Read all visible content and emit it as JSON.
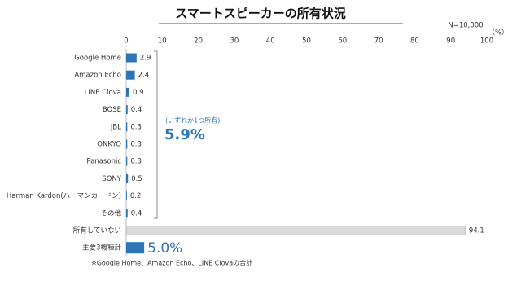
{
  "chart_data": {
    "type": "hbar",
    "title": "スマートスピーカーの所有状況",
    "sample_size": "N=10,000",
    "unit": "（%）",
    "categories": [
      "Google Home",
      "Amazon Echo",
      "LINE Clova",
      "BOSE",
      "JBL",
      "ONKYO",
      "Panasonic",
      "SONY",
      "Harman Kardon(ハーマンカードン)",
      "その他",
      "所有していない",
      "主要3機種計"
    ],
    "values": [
      2.9,
      2.4,
      0.9,
      0.4,
      0.3,
      0.3,
      0.3,
      0.5,
      0.2,
      0.4,
      94.1,
      5.0
    ],
    "value_labels": [
      "2.9",
      "2.4",
      "0.9",
      "0.4",
      "0.3",
      "0.3",
      "0.3",
      "0.5",
      "0.2",
      "0.4",
      "94.1",
      "5.0%"
    ],
    "colors": [
      "#2e75b6",
      "#2e75b6",
      "#2e75b6",
      "#2e75b6",
      "#2e75b6",
      "#2e75b6",
      "#2e75b6",
      "#2e75b6",
      "#2e75b6",
      "#2e75b6",
      "#d9d9d9",
      "#2e75b6"
    ],
    "xlim": [
      0,
      100
    ],
    "xticks": [
      0,
      10,
      20,
      30,
      40,
      50,
      60,
      70,
      80,
      90,
      100
    ],
    "grid": false,
    "annotation": {
      "label": "(いずれか1つ所有)",
      "value_text": "5.9%"
    },
    "footnote": "※Google Home、Amazon Echo、LINE Clovaの合計"
  }
}
